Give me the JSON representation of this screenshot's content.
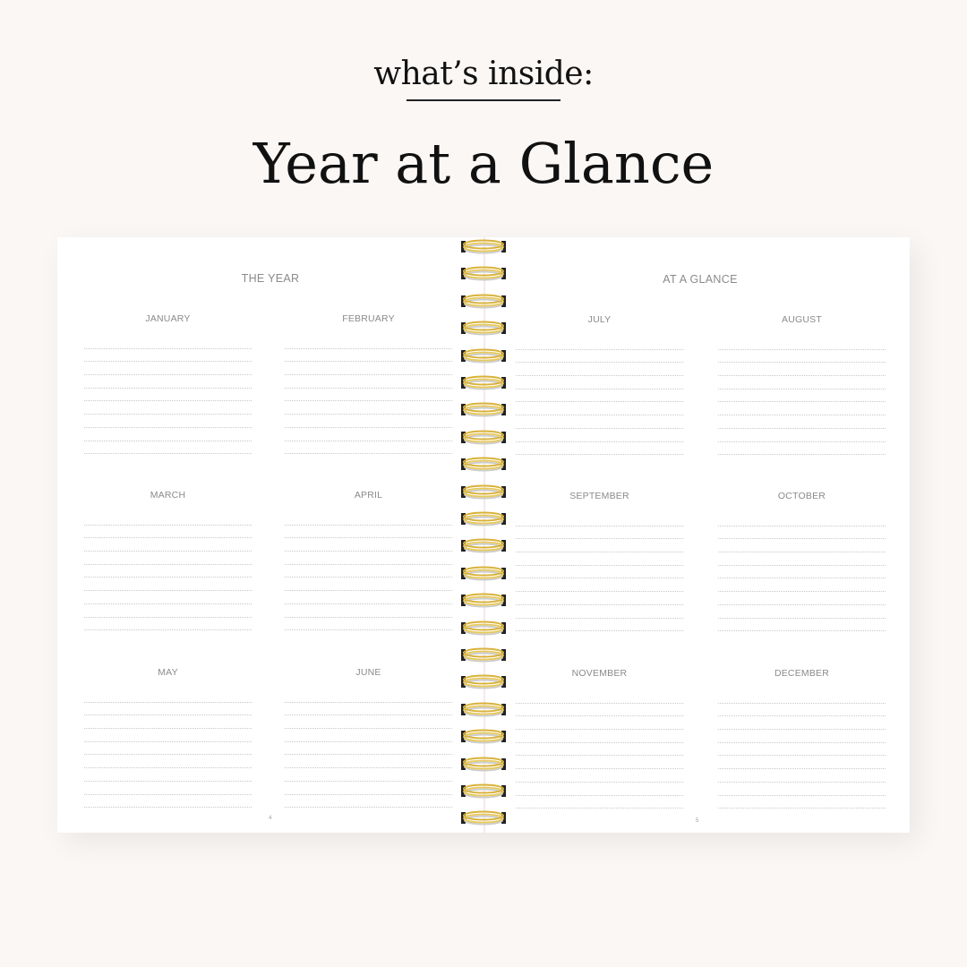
{
  "header": {
    "eyebrow": "what’s inside:",
    "title": "Year at a Glance"
  },
  "left_page": {
    "heading": "THE YEAR",
    "page_number": "4",
    "months": [
      "JANUARY",
      "FEBRUARY",
      "MARCH",
      "APRIL",
      "MAY",
      "JUNE"
    ]
  },
  "right_page": {
    "heading": "AT A GLANCE",
    "page_number": "5",
    "months": [
      "JULY",
      "AUGUST",
      "SEPTEMBER",
      "OCTOBER",
      "NOVEMBER",
      "DECEMBER"
    ]
  },
  "lines_per_month": 9,
  "ring_count": 22,
  "colors": {
    "background": "#faf7f5",
    "ring_gold": "#d9b23a",
    "text_gray": "#8a8a8a"
  }
}
